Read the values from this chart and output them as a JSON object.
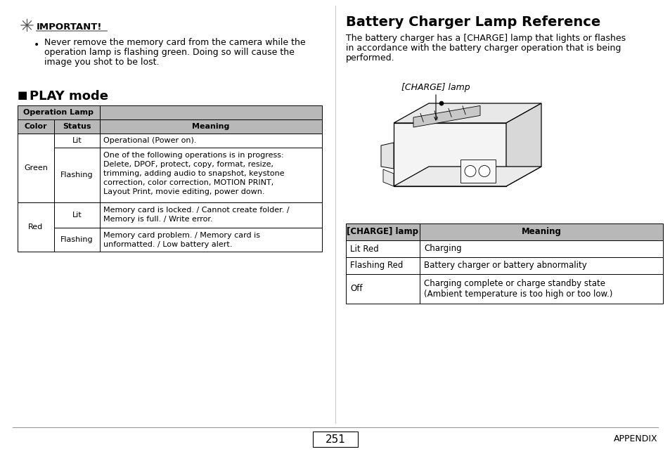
{
  "bg_color": "#ffffff",
  "page_number": "251",
  "appendix_label": "APPENDIX",
  "left_panel": {
    "important_title": "IMPORTANT!",
    "important_lines": [
      "Never remove the memory card from the camera while the",
      "operation lamp is flashing green. Doing so will cause the",
      "image you shot to be lost."
    ],
    "play_mode_title": "PLAY mode",
    "table_header_row1_col1": "Operation Lamp",
    "table_header_row2_col1": "Color",
    "table_header_row2_col2": "Status",
    "table_header_meaning": "Meaning",
    "header_bg": "#b8b8b8",
    "rows": [
      {
        "color": "",
        "status": "Lit",
        "meaning_lines": [
          "Operational (Power on)."
        ],
        "color_rowspan": 0
      },
      {
        "color": "Green",
        "status": "Flashing",
        "meaning_lines": [
          "One of the following operations is in progress:",
          "Delete, DPOF, protect, copy, format, resize,",
          "trimming, adding audio to snapshot, keystone",
          "correction, color correction, MOTION PRINT,",
          "Layout Print, movie editing, power down."
        ],
        "color_rowspan": 2
      },
      {
        "color": "",
        "status": "Lit",
        "meaning_lines": [
          "Memory card is locked. / Cannot create folder. /",
          "Memory is full. / Write error."
        ],
        "color_rowspan": 0
      },
      {
        "color": "Red",
        "status": "Flashing",
        "meaning_lines": [
          "Memory card problem. / Memory card is",
          "unformatted. / Low battery alert."
        ],
        "color_rowspan": 2
      }
    ]
  },
  "right_panel": {
    "title": "Battery Charger Lamp Reference",
    "description_lines": [
      "The battery charger has a [CHARGE] lamp that lights or flashes",
      "in accordance with the battery charger operation that is being",
      "performed."
    ],
    "charge_lamp_label": "[CHARGE] lamp",
    "table_header_col1": "[CHARGE] lamp",
    "table_header_col2": "Meaning",
    "header_bg": "#b8b8b8",
    "rows": [
      {
        "lamp": "Lit Red",
        "meaning_lines": [
          "Charging"
        ]
      },
      {
        "lamp": "Flashing Red",
        "meaning_lines": [
          "Battery charger or battery abnormality"
        ]
      },
      {
        "lamp": "Off",
        "meaning_lines": [
          "Charging complete or charge standby state",
          "(Ambient temperature is too high or too low.)"
        ]
      }
    ]
  }
}
